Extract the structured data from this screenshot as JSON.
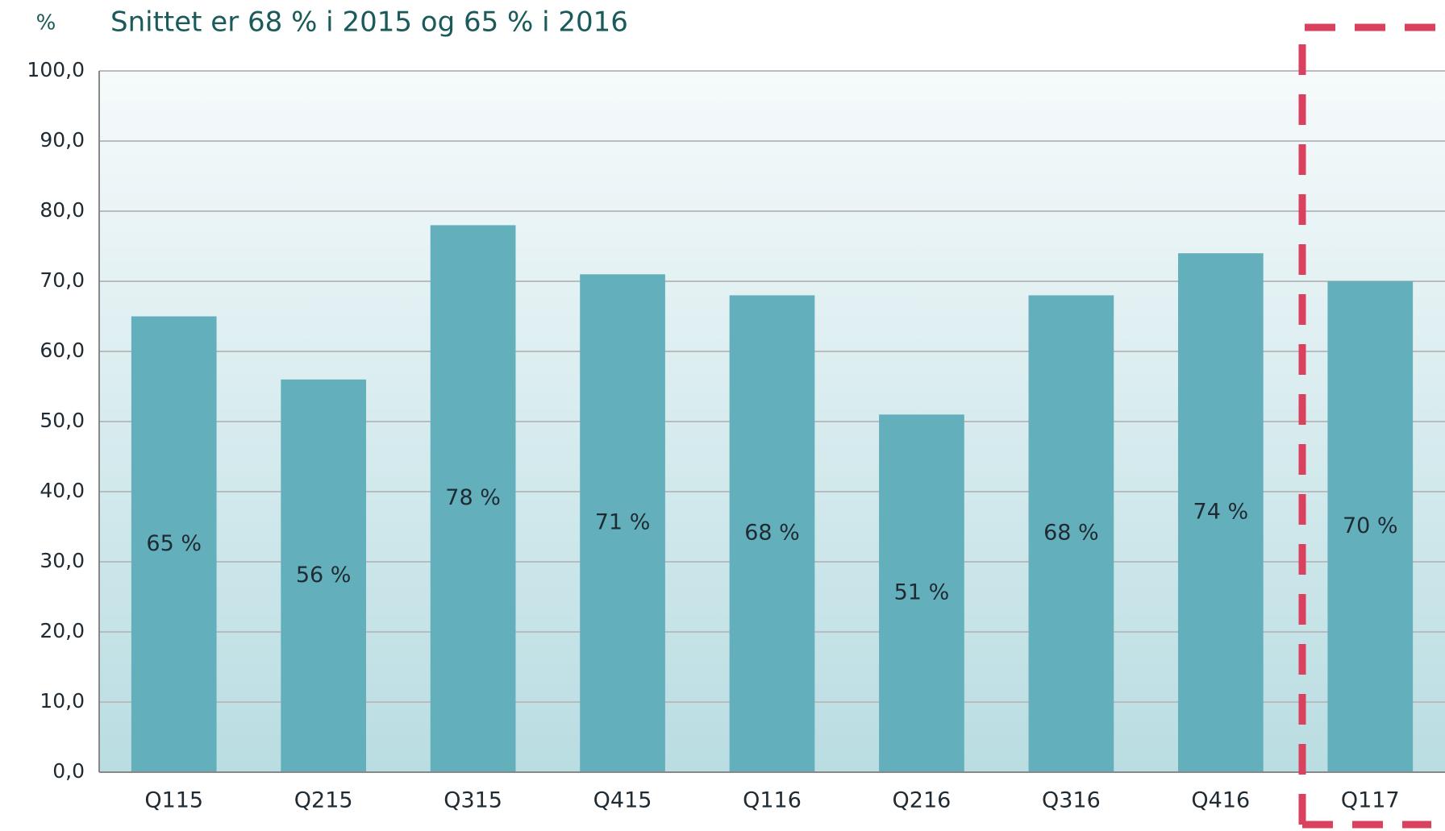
{
  "chart_data": {
    "type": "bar",
    "title": "Snittet er 68 % i 2015 og 65 % i 2016",
    "y_label": "%",
    "categories": [
      "Q115",
      "Q215",
      "Q315",
      "Q415",
      "Q116",
      "Q216",
      "Q316",
      "Q416",
      "Q117"
    ],
    "values": [
      65,
      56,
      78,
      71,
      68,
      51,
      68,
      74,
      70
    ],
    "value_labels": [
      "65 %",
      "56 %",
      "78 %",
      "71 %",
      "68 %",
      "51 %",
      "68 %",
      "74 %",
      "70 %"
    ],
    "color": "#63b0bc",
    "ylim": [
      0,
      100
    ],
    "yticks": [
      {
        "value": 0,
        "label": "0,0"
      },
      {
        "value": 10,
        "label": "10,0"
      },
      {
        "value": 20,
        "label": "20,0"
      },
      {
        "value": 30,
        "label": "30,0"
      },
      {
        "value": 40,
        "label": "40,0"
      },
      {
        "value": 50,
        "label": "50,0"
      },
      {
        "value": 60,
        "label": "60,0"
      },
      {
        "value": 70,
        "label": "70,0"
      },
      {
        "value": 80,
        "label": "80,0"
      },
      {
        "value": 90,
        "label": "90,0"
      },
      {
        "value": 100,
        "label": "100,0"
      }
    ],
    "grid": true
  }
}
